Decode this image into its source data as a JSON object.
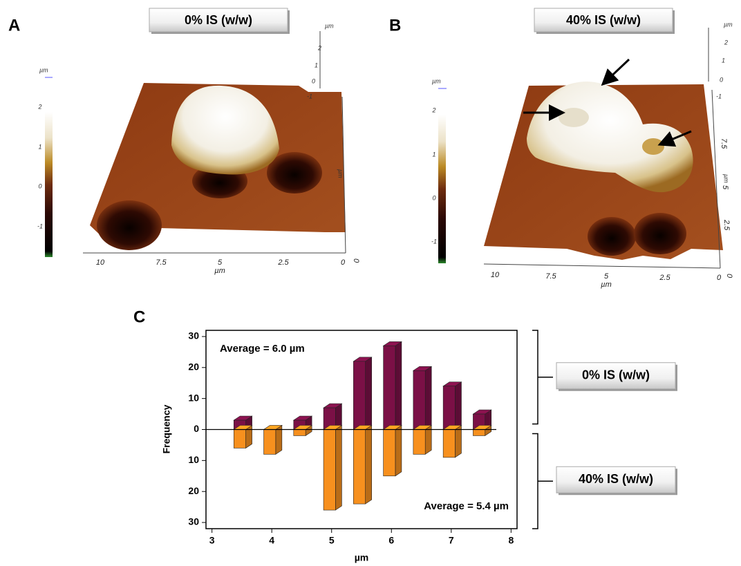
{
  "panels": [
    {
      "letter": "A",
      "label": "0% IS (w/w)",
      "colorbar_unit": "µm",
      "colorbar_ticks": [
        "2",
        "1",
        "0",
        "-1"
      ],
      "z_unit": "µm",
      "z_ticks": [
        "2",
        "1",
        "0",
        "-1"
      ],
      "y_unit": "µm",
      "y_ticks": [
        "0"
      ],
      "x_unit": "µm",
      "x_ticks": [
        "10",
        "7.5",
        "5",
        "2.5",
        "0"
      ]
    },
    {
      "letter": "B",
      "label": "40% IS (w/w)",
      "colorbar_unit": "µm",
      "colorbar_ticks": [
        "2",
        "1",
        "0",
        "-1"
      ],
      "z_unit": "µm",
      "z_ticks": [
        "2",
        "1",
        "0",
        "-1"
      ],
      "y_unit": "µm",
      "y_ticks": [
        "0",
        "2.5",
        "5",
        "7.5"
      ],
      "x_unit": "µm",
      "x_ticks": [
        "10",
        "7.5",
        "5",
        "2.5",
        "0"
      ]
    }
  ],
  "chart_data": {
    "type": "bar",
    "panel_letter": "C",
    "x_label": "µm",
    "y_label": "Frequency",
    "x": [
      3.5,
      4,
      4.5,
      5,
      5.5,
      6,
      6.5,
      7,
      7.5
    ],
    "series": [
      {
        "name": "0% IS (w/w)",
        "color": "#7b1046",
        "values": [
          3,
          0,
          3,
          7,
          22,
          27,
          19,
          14,
          5
        ]
      },
      {
        "name": "40% IS (w/w)",
        "color": "#f7901e",
        "values": [
          -6,
          -8,
          -2,
          -26,
          -24,
          -15,
          -8,
          -9,
          -2
        ]
      }
    ],
    "xlim": [
      2.9,
      8.1
    ],
    "xticks": [
      3,
      4,
      5,
      6,
      7,
      8
    ],
    "ylim": [
      -32,
      32
    ],
    "yticks": [
      30,
      20,
      10,
      0,
      {
        "value": -10,
        "label": "10"
      },
      {
        "value": -20,
        "label": "20"
      },
      {
        "value": -30,
        "label": "30"
      }
    ],
    "annotations": [
      "Average = 6.0 µm",
      "Average = 5.4 µm"
    ],
    "legend": "right"
  }
}
